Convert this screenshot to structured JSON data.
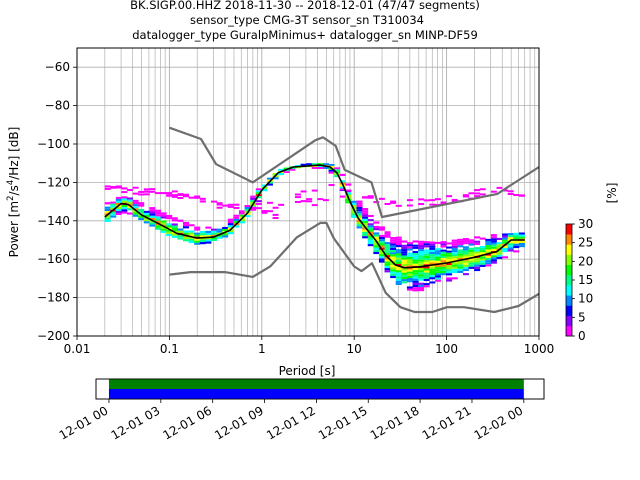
{
  "chart_data": [
    {
      "type": "heatmap",
      "title_lines": [
        "BK.SIGP.00.HHZ   2018-11-30 -- 2018-12-01  (47/47 segments)",
        "sensor_type CMG-3T sensor_sn T310034",
        "datalogger_type GuralpMinimus+ datalogger_sn MINP-DF59"
      ],
      "xlabel": "Period [s]",
      "ylabel_parts": {
        "pre": "Power [m",
        "exp1": "2",
        "mid": "/s",
        "exp2": "4",
        "post": "/Hz] [dB]"
      },
      "xscale": "log",
      "xlim": [
        0.01,
        1000
      ],
      "ylim": [
        -200,
        -50
      ],
      "grid": true,
      "x_ticks": [
        {
          "value": 0.01,
          "label": "0.01"
        },
        {
          "value": 0.1,
          "label": "0.1"
        },
        {
          "value": 1,
          "label": "1"
        },
        {
          "value": 10,
          "label": "10"
        },
        {
          "value": 100,
          "label": "100"
        },
        {
          "value": 1000,
          "label": "1000"
        }
      ],
      "y_ticks": [
        {
          "value": -60,
          "label": "−60"
        },
        {
          "value": -80,
          "label": "−80"
        },
        {
          "value": -100,
          "label": "−100"
        },
        {
          "value": -120,
          "label": "−120"
        },
        {
          "value": -140,
          "label": "−140"
        },
        {
          "value": -160,
          "label": "−160"
        },
        {
          "value": -180,
          "label": "−180"
        },
        {
          "value": -200,
          "label": "−200"
        }
      ],
      "series": [
        {
          "role": "nhnm",
          "color": "#6e6e6e",
          "points": [
            [
              0.1,
              -91.5
            ],
            [
              0.22,
              -97.4
            ],
            [
              0.32,
              -110.5
            ],
            [
              0.8,
              -120
            ],
            [
              3.8,
              -98
            ],
            [
              4.6,
              -96.5
            ],
            [
              6.3,
              -101
            ],
            [
              7.9,
              -113.5
            ],
            [
              15.4,
              -120
            ],
            [
              20,
              -138
            ],
            [
              354,
              -126
            ],
            [
              1000,
              -112
            ]
          ]
        },
        {
          "role": "nlnm",
          "color": "#6e6e6e",
          "points": [
            [
              0.1,
              -168
            ],
            [
              0.17,
              -166.7
            ],
            [
              0.4,
              -166.7
            ],
            [
              0.8,
              -169.2
            ],
            [
              1.24,
              -163.7
            ],
            [
              2.4,
              -148.6
            ],
            [
              4.3,
              -141.1
            ],
            [
              5,
              -141.1
            ],
            [
              6,
              -149
            ],
            [
              10,
              -163.8
            ],
            [
              12,
              -166.2
            ],
            [
              15.6,
              -162.1
            ],
            [
              21.9,
              -177.5
            ],
            [
              31.6,
              -185
            ],
            [
              45,
              -187.5
            ],
            [
              70,
              -187.5
            ],
            [
              101,
              -185
            ],
            [
              154,
              -185
            ],
            [
              328,
              -187.5
            ],
            [
              600,
              -184.4
            ],
            [
              1000,
              -178
            ]
          ]
        },
        {
          "role": "mean",
          "color": "#000000",
          "points": [
            [
              0.02,
              -138
            ],
            [
              0.03,
              -131
            ],
            [
              0.036,
              -131.5
            ],
            [
              0.05,
              -137
            ],
            [
              0.08,
              -142
            ],
            [
              0.12,
              -146.5
            ],
            [
              0.2,
              -149
            ],
            [
              0.3,
              -148.5
            ],
            [
              0.45,
              -145
            ],
            [
              0.7,
              -136
            ],
            [
              1,
              -124
            ],
            [
              1.5,
              -115
            ],
            [
              2.2,
              -112
            ],
            [
              3,
              -111.5
            ],
            [
              4.3,
              -111
            ],
            [
              5.5,
              -112
            ],
            [
              6.5,
              -115
            ],
            [
              7.5,
              -121
            ],
            [
              9,
              -130
            ],
            [
              11,
              -138.5
            ],
            [
              14,
              -145
            ],
            [
              17,
              -150
            ],
            [
              22,
              -158
            ],
            [
              28,
              -163
            ],
            [
              35,
              -164.5
            ],
            [
              50,
              -164
            ],
            [
              100,
              -162
            ],
            [
              200,
              -159
            ],
            [
              350,
              -156
            ],
            [
              500,
              -150
            ],
            [
              700,
              -150
            ]
          ]
        }
      ],
      "upper_envelope": [
        [
          0.02,
          -131
        ],
        [
          0.03,
          -127
        ],
        [
          0.036,
          -127.5
        ],
        [
          0.06,
          -132
        ],
        [
          0.1,
          -137
        ],
        [
          0.2,
          -143
        ],
        [
          0.35,
          -143
        ],
        [
          0.6,
          -135
        ],
        [
          1,
          -121
        ],
        [
          1.6,
          -113
        ],
        [
          3,
          -110
        ],
        [
          5.5,
          -110
        ],
        [
          7,
          -113
        ],
        [
          9,
          -122
        ],
        [
          12,
          -131
        ],
        [
          17,
          -140
        ],
        [
          25,
          -147
        ],
        [
          40,
          -150
        ],
        [
          80,
          -151
        ],
        [
          160,
          -149
        ],
        [
          300,
          -147
        ],
        [
          700,
          -146
        ]
      ],
      "lower_envelope": [
        [
          0.02,
          -143
        ],
        [
          0.03,
          -136
        ],
        [
          0.04,
          -137
        ],
        [
          0.06,
          -142
        ],
        [
          0.1,
          -148
        ],
        [
          0.2,
          -152.5
        ],
        [
          0.32,
          -151.5
        ],
        [
          0.5,
          -146
        ],
        [
          0.8,
          -135
        ],
        [
          1.2,
          -122
        ],
        [
          2,
          -114
        ],
        [
          3,
          -113
        ],
        [
          5,
          -113
        ],
        [
          6.5,
          -118
        ],
        [
          8.5,
          -130
        ],
        [
          11,
          -144
        ],
        [
          14,
          -151
        ],
        [
          19,
          -160
        ],
        [
          25,
          -170
        ],
        [
          35,
          -176
        ],
        [
          50,
          -177
        ],
        [
          80,
          -174
        ],
        [
          130,
          -170
        ],
        [
          250,
          -165
        ],
        [
          500,
          -158
        ],
        [
          700,
          -154
        ]
      ],
      "scatter_band": {
        "upper": [
          [
            0.02,
            -121
          ],
          [
            0.05,
            -123
          ],
          [
            0.1,
            -124
          ],
          [
            0.2,
            -127
          ],
          [
            0.4,
            -130
          ],
          [
            0.7,
            -133
          ],
          [
            4.6,
            -120
          ],
          [
            8,
            -122
          ],
          [
            15,
            -127
          ],
          [
            30,
            -129
          ],
          [
            80,
            -128
          ],
          [
            150,
            -126
          ],
          [
            300,
            -122
          ],
          [
            700,
            -124
          ]
        ],
        "color": "#ff00ff"
      },
      "colorbar": {
        "label": "[%]",
        "ticks": [
          {
            "value": 0,
            "label": "0"
          },
          {
            "value": 5,
            "label": "5"
          },
          {
            "value": 10,
            "label": "10"
          },
          {
            "value": 15,
            "label": "15"
          },
          {
            "value": 20,
            "label": "20"
          },
          {
            "value": 25,
            "label": "25"
          },
          {
            "value": 30,
            "label": "30"
          }
        ],
        "range": [
          0,
          30
        ],
        "colors": [
          "#ffffff",
          "#ff00ff",
          "#8800ff",
          "#0000ff",
          "#0088ff",
          "#00ffff",
          "#00ff88",
          "#00ff00",
          "#88ff00",
          "#ffff00",
          "#ff8800",
          "#ff0000"
        ]
      }
    },
    {
      "type": "timeline",
      "range": [
        "2018-11-30 23:15",
        "2018-12-02 01:10"
      ],
      "data_range": [
        "2018-12-01 00:00",
        "2018-12-02 00:00"
      ],
      "rows": [
        {
          "name": "top",
          "color": "#008000"
        },
        {
          "name": "bottom",
          "color": "#0000ff"
        }
      ],
      "ticks": [
        {
          "hours": 0,
          "label": "12-01 00"
        },
        {
          "hours": 3,
          "label": "12-01 03"
        },
        {
          "hours": 6,
          "label": "12-01 06"
        },
        {
          "hours": 9,
          "label": "12-01 09"
        },
        {
          "hours": 12,
          "label": "12-01 12"
        },
        {
          "hours": 15,
          "label": "12-01 15"
        },
        {
          "hours": 18,
          "label": "12-01 18"
        },
        {
          "hours": 21,
          "label": "12-01 21"
        },
        {
          "hours": 24,
          "label": "12-02 00"
        }
      ]
    }
  ]
}
